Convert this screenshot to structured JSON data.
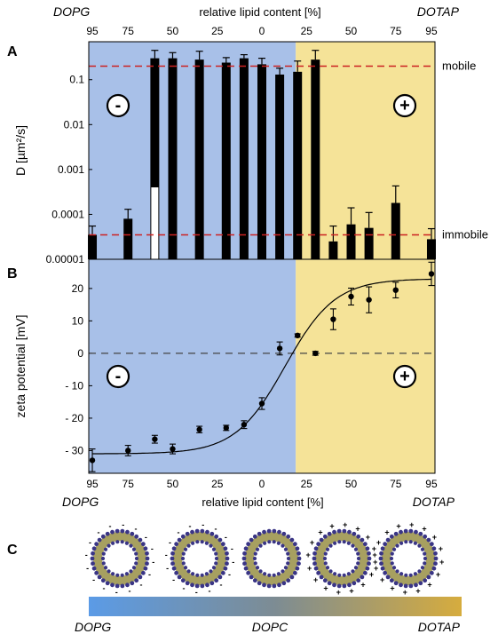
{
  "colors": {
    "left_bg": "#a8c0e8",
    "right_bg": "#f5e398",
    "ref_line": "#cc2222",
    "bar": "#000000"
  },
  "header": {
    "left_lipid": "DOPG",
    "right_lipid": "DOTAP",
    "axis_label": "relative lipid content [%]"
  },
  "footer": {
    "left_lipid": "DOPG",
    "right_lipid": "DOTAP",
    "axis_label": "relative lipid content [%]"
  },
  "tick_labels": [
    "95",
    "75",
    "50",
    "25",
    "0",
    "25",
    "50",
    "75",
    "95"
  ],
  "gradient": {
    "left": "DOPG",
    "mid": "DOPC",
    "right": "DOTAP"
  },
  "chart_data": [
    {
      "panel": "A",
      "type": "bar",
      "ylabel": "D [µm²/s]",
      "yscale": "log",
      "ylim": [
        1e-05,
        0.7
      ],
      "ytick_labels": [
        "0.00001",
        "0.0001",
        "0.001",
        "0.01",
        "0.1"
      ],
      "xlim": [
        -97,
        97
      ],
      "ref_lines": [
        {
          "label": "mobile",
          "value": 0.2
        },
        {
          "label": "immobile",
          "value": 3.5e-05
        }
      ],
      "negative_sign": "-",
      "positive_sign": "+",
      "bars": [
        {
          "x": -95,
          "value": 3.5e-05,
          "err": 2e-05
        },
        {
          "x": -75,
          "value": 8e-05,
          "err": 5e-05
        },
        {
          "x": -60,
          "value": 0.3,
          "err": 0.15,
          "overlay_value": 0.0004,
          "overlay_err": 0.0004
        },
        {
          "x": -50,
          "value": 0.3,
          "err": 0.1
        },
        {
          "x": -35,
          "value": 0.28,
          "err": 0.15
        },
        {
          "x": -20,
          "value": 0.24,
          "err": 0.07
        },
        {
          "x": -10,
          "value": 0.3,
          "err": 0.06
        },
        {
          "x": 0,
          "value": 0.22,
          "err": 0.08
        },
        {
          "x": 10,
          "value": 0.13,
          "err": 0.05
        },
        {
          "x": 20,
          "value": 0.15,
          "err": 0.11
        },
        {
          "x": 30,
          "value": 0.28,
          "err": 0.17
        },
        {
          "x": 40,
          "value": 2.5e-05,
          "err": 3e-05
        },
        {
          "x": 50,
          "value": 6e-05,
          "err": 8e-05
        },
        {
          "x": 60,
          "value": 5e-05,
          "err": 6e-05
        },
        {
          "x": 75,
          "value": 0.00018,
          "err": 0.00025
        },
        {
          "x": 95,
          "value": 2.8e-05,
          "err": 2e-05
        }
      ]
    },
    {
      "panel": "B",
      "type": "scatter",
      "ylabel": "zeta potential [mV]",
      "ylim": [
        -37,
        29
      ],
      "yticks": [
        -30,
        -20,
        -10,
        0,
        10,
        20
      ],
      "ytick_labels": [
        "- 30",
        "- 20",
        "- 10",
        "0",
        "10",
        "20"
      ],
      "xlim": [
        -97,
        97
      ],
      "negative_sign": "-",
      "positive_sign": "+",
      "points": [
        {
          "x": -95,
          "y": -33,
          "err": 3.5
        },
        {
          "x": -75,
          "y": -30,
          "err": 1.6
        },
        {
          "x": -60,
          "y": -26.5,
          "err": 1.2
        },
        {
          "x": -50,
          "y": -29.5,
          "err": 1.5
        },
        {
          "x": -35,
          "y": -23.5,
          "err": 1
        },
        {
          "x": -20,
          "y": -23,
          "err": 0.8
        },
        {
          "x": -10,
          "y": -22,
          "err": 1.2
        },
        {
          "x": 0,
          "y": -15.5,
          "err": 1.8
        },
        {
          "x": 10,
          "y": 1.5,
          "err": 2
        },
        {
          "x": 20,
          "y": 5.5,
          "err": 0.5
        },
        {
          "x": 30,
          "y": 0,
          "err": 0.6
        },
        {
          "x": 40,
          "y": 10.5,
          "err": 3.2
        },
        {
          "x": 50,
          "y": 17.5,
          "err": 2.6
        },
        {
          "x": 60,
          "y": 16.5,
          "err": 4
        },
        {
          "x": 75,
          "y": 19.5,
          "err": 2.4
        },
        {
          "x": 95,
          "y": 24.5,
          "err": 3.6
        }
      ],
      "fit_curve": {
        "low": -31,
        "high": 23,
        "midpoint": 13,
        "width": 14
      }
    }
  ],
  "panel_c": {
    "label": "C",
    "vesicles": [
      {
        "charge": "negative",
        "sign": "-"
      },
      {
        "charge": "negative",
        "sign": "-"
      },
      {
        "charge": "neutral",
        "sign": ""
      },
      {
        "charge": "positive",
        "sign": "+"
      },
      {
        "charge": "positive",
        "sign": "+"
      }
    ]
  }
}
